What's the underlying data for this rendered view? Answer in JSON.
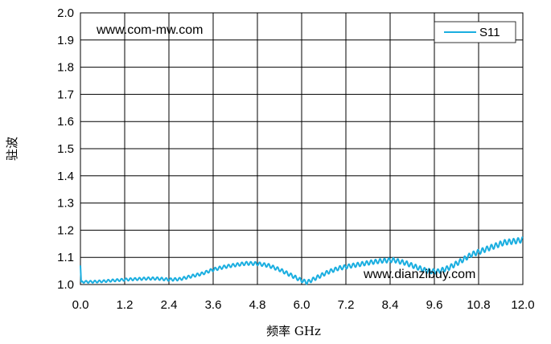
{
  "chart_data": {
    "type": "line",
    "xlabel": "频率 GHz",
    "ylabel": "驻波",
    "xlim": [
      0,
      12
    ],
    "ylim": [
      1.0,
      2.0
    ],
    "x_ticks": [
      "0.0",
      "1.2",
      "2.4",
      "3.6",
      "4.8",
      "6.0",
      "7.2",
      "8.4",
      "9.6",
      "10.8",
      "12.0"
    ],
    "y_ticks": [
      "1.0",
      "1.1",
      "1.2",
      "1.3",
      "1.4",
      "1.5",
      "1.6",
      "1.7",
      "1.8",
      "1.9",
      "2.0"
    ],
    "grid": true,
    "legend_position": "top-right",
    "annotations": [
      "www.com-mw.com",
      "www.dianzibuy.com"
    ],
    "series": [
      {
        "name": "S11",
        "color": "#1aaee0",
        "x": [
          0.0,
          0.02,
          0.05,
          0.3,
          0.6,
          0.9,
          1.2,
          1.5,
          1.8,
          2.1,
          2.4,
          2.7,
          3.0,
          3.3,
          3.6,
          3.9,
          4.2,
          4.5,
          4.8,
          5.1,
          5.4,
          5.7,
          6.0,
          6.15,
          6.4,
          6.7,
          7.0,
          7.3,
          7.6,
          7.9,
          8.2,
          8.5,
          8.8,
          9.1,
          9.4,
          9.7,
          10.0,
          10.3,
          10.6,
          10.9,
          11.2,
          11.5,
          11.8,
          12.0
        ],
        "y": [
          1.07,
          1.01,
          1.01,
          1.01,
          1.012,
          1.015,
          1.018,
          1.02,
          1.022,
          1.022,
          1.018,
          1.02,
          1.03,
          1.04,
          1.055,
          1.065,
          1.072,
          1.078,
          1.077,
          1.07,
          1.055,
          1.035,
          1.015,
          1.008,
          1.025,
          1.045,
          1.06,
          1.068,
          1.075,
          1.082,
          1.088,
          1.09,
          1.08,
          1.065,
          1.05,
          1.048,
          1.062,
          1.085,
          1.11,
          1.125,
          1.14,
          1.155,
          1.16,
          1.165
        ]
      }
    ]
  }
}
